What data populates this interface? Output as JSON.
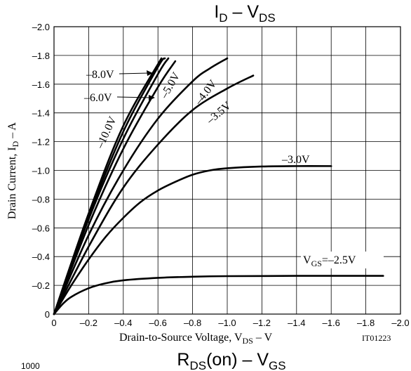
{
  "title_main": "I",
  "title_sub1": "D",
  "title_mid": " – V",
  "title_sub2": "DS",
  "bottom_title_main": "R",
  "bottom_title_sub1": "DS",
  "bottom_title_mid": "(on) – V",
  "bottom_title_sub2": "GS",
  "partial_tick": "1000",
  "xlabel_main": "Drain-to-Source Voltage, V",
  "xlabel_sub": "DS",
  "xlabel_unit": " – V",
  "ylabel_main": "Drain Current, I",
  "ylabel_sub": "D",
  "ylabel_unit": " – A",
  "figure_code": "IT01223",
  "chart_data": {
    "type": "line",
    "xlim": [
      0,
      -2.0
    ],
    "ylim": [
      0,
      -2.0
    ],
    "grid": true,
    "x_ticks": [
      "0",
      "–0.2",
      "–0.4",
      "–0.6",
      "–0.8",
      "–1.0",
      "–1.2",
      "–1.4",
      "–1.6",
      "–1.8",
      "–2.0"
    ],
    "y_ticks": [
      "0",
      "–0.2",
      "–0.4",
      "–0.6",
      "–0.8",
      "–1.0",
      "–1.2",
      "–1.4",
      "–1.6",
      "–1.8",
      "–2.0"
    ],
    "series": [
      {
        "name": "V_GS=–2.5V",
        "label_prefix": "V",
        "label_sub": "GS",
        "label_suffix": "=–2.5V",
        "x": [
          0,
          -0.05,
          -0.1,
          -0.2,
          -0.3,
          -0.4,
          -0.6,
          -0.8,
          -1.0,
          -1.4,
          -1.9
        ],
        "y": [
          0,
          -0.07,
          -0.12,
          -0.18,
          -0.215,
          -0.235,
          -0.252,
          -0.26,
          -0.264,
          -0.266,
          -0.266
        ]
      },
      {
        "name": "–3.0V",
        "label": "–3.0V",
        "x": [
          0,
          -0.1,
          -0.2,
          -0.3,
          -0.4,
          -0.5,
          -0.6,
          -0.7,
          -0.8,
          -0.9,
          -1.0,
          -1.2,
          -1.4,
          -1.6
        ],
        "y": [
          0,
          -0.2,
          -0.38,
          -0.54,
          -0.67,
          -0.78,
          -0.86,
          -0.92,
          -0.97,
          -1.0,
          -1.015,
          -1.027,
          -1.03,
          -1.03
        ]
      },
      {
        "name": "–3.5V",
        "label": "–3.5V",
        "x": [
          0,
          -0.2,
          -0.4,
          -0.6,
          -0.8,
          -1.0,
          -1.15
        ],
        "y": [
          0,
          -0.47,
          -0.88,
          -1.18,
          -1.42,
          -1.57,
          -1.66
        ]
      },
      {
        "name": "–4.0V",
        "label": "–4.0V",
        "x": [
          0,
          -0.2,
          -0.4,
          -0.6,
          -0.8,
          -0.9,
          -1.0
        ],
        "y": [
          0,
          -0.55,
          -1.0,
          -1.36,
          -1.62,
          -1.71,
          -1.78
        ]
      },
      {
        "name": "–5.0V",
        "label": "–5.0V",
        "x": [
          0,
          -0.2,
          -0.4,
          -0.6,
          -0.7
        ],
        "y": [
          0,
          -0.62,
          -1.15,
          -1.58,
          -1.76
        ]
      },
      {
        "name": "–6.0V",
        "label": "–6.0V",
        "x": [
          0,
          -0.2,
          -0.4,
          -0.6,
          -0.66
        ],
        "y": [
          0,
          -0.66,
          -1.22,
          -1.67,
          -1.78
        ]
      },
      {
        "name": "–8.0V",
        "label": "–8.0V",
        "x": [
          0,
          -0.2,
          -0.4,
          -0.6,
          -0.64
        ],
        "y": [
          0,
          -0.68,
          -1.27,
          -1.72,
          -1.78
        ]
      },
      {
        "name": "–10.0V",
        "label": "–10.0V",
        "x": [
          0,
          -0.2,
          -0.4,
          -0.62
        ],
        "y": [
          0,
          -0.7,
          -1.31,
          -1.78
        ]
      }
    ]
  }
}
